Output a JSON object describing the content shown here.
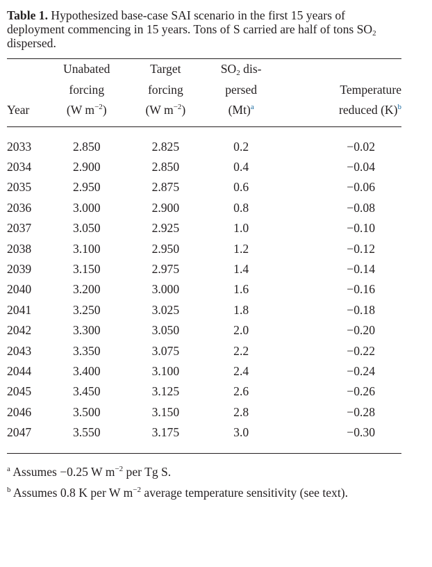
{
  "caption": {
    "label": "Table 1.",
    "text_part1": " Hypothesized base-case SAI scenario in the first 15 years of deployment commencing in 15 years. Tons of S carried are half of tons SO",
    "text_sub": "2",
    "text_part2": " dispersed."
  },
  "headers": {
    "year": [
      "Year"
    ],
    "unabated": [
      "Unabated",
      "forcing",
      "(W m",
      "−2",
      ")"
    ],
    "target": [
      "Target",
      "forcing",
      "(W m",
      "−2",
      ")"
    ],
    "so2": [
      "SO",
      "2",
      " dis-",
      "persed",
      "(Mt)",
      "a"
    ],
    "temp": [
      "Temperature",
      "reduced (K)",
      "b"
    ]
  },
  "rows": [
    [
      "2033",
      "2.850",
      "2.825",
      "0.2",
      "−0.02"
    ],
    [
      "2034",
      "2.900",
      "2.850",
      "0.4",
      "−0.04"
    ],
    [
      "2035",
      "2.950",
      "2.875",
      "0.6",
      "−0.06"
    ],
    [
      "2036",
      "3.000",
      "2.900",
      "0.8",
      "−0.08"
    ],
    [
      "2037",
      "3.050",
      "2.925",
      "1.0",
      "−0.10"
    ],
    [
      "2038",
      "3.100",
      "2.950",
      "1.2",
      "−0.12"
    ],
    [
      "2039",
      "3.150",
      "2.975",
      "1.4",
      "−0.14"
    ],
    [
      "2040",
      "3.200",
      "3.000",
      "1.6",
      "−0.16"
    ],
    [
      "2041",
      "3.250",
      "3.025",
      "1.8",
      "−0.18"
    ],
    [
      "2042",
      "3.300",
      "3.050",
      "2.0",
      "−0.20"
    ],
    [
      "2043",
      "3.350",
      "3.075",
      "2.2",
      "−0.22"
    ],
    [
      "2044",
      "3.400",
      "3.100",
      "2.4",
      "−0.24"
    ],
    [
      "2045",
      "3.450",
      "3.125",
      "2.6",
      "−0.26"
    ],
    [
      "2046",
      "3.500",
      "3.150",
      "2.8",
      "−0.28"
    ],
    [
      "2047",
      "3.550",
      "3.175",
      "3.0",
      "−0.30"
    ]
  ],
  "footnotes": {
    "a": {
      "mark": "a",
      "text1": " Assumes −0.25 W m",
      "sup": "−2",
      "text2": " per Tg S."
    },
    "b": {
      "mark": "b",
      "text1": " Assumes 0.8 K per W m",
      "sup": "−2",
      "text2": " average temperature sensitivity (see text)."
    }
  },
  "colors": {
    "text": "#231f20",
    "footnote_link": "#1a6aa0"
  }
}
